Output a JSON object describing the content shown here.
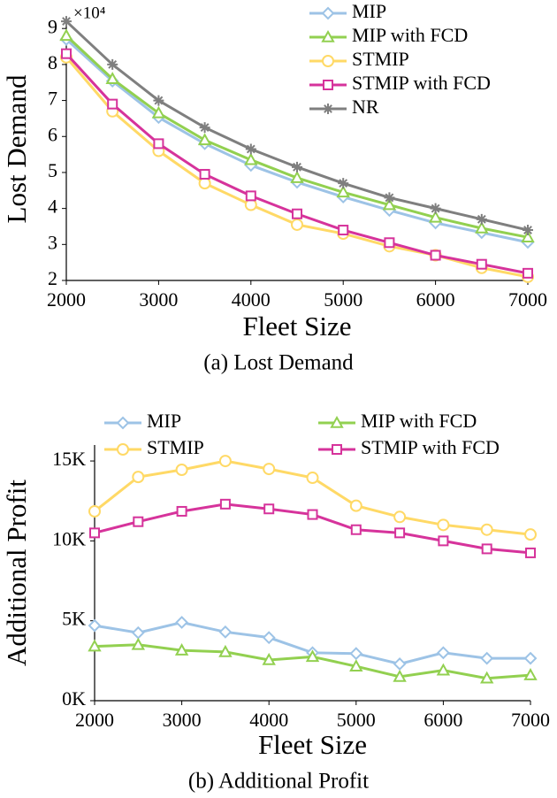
{
  "chart_data": [
    {
      "type": "line",
      "caption": "(a) Lost Demand",
      "x_label": "Fleet Size",
      "y_label": "Lost Demand",
      "y_multiplier": "×10⁴",
      "x": [
        2000,
        2500,
        3000,
        3500,
        4000,
        4500,
        5000,
        5500,
        6000,
        6500,
        7000
      ],
      "xlim": [
        2000,
        7000
      ],
      "xticks": [
        2000,
        3000,
        4000,
        5000,
        6000,
        7000
      ],
      "ylim": [
        2,
        9.3
      ],
      "yticks": [
        2,
        3,
        4,
        5,
        6,
        7,
        8,
        9
      ],
      "legend_columns": 1,
      "series": [
        {
          "name": "MIP",
          "color": "#9dc3e6",
          "marker": "diamond",
          "values": [
            8.7,
            7.54,
            6.53,
            5.8,
            5.2,
            4.73,
            4.32,
            3.95,
            3.6,
            3.33,
            3.06
          ]
        },
        {
          "name": "MIP with FCD",
          "color": "#92d050",
          "marker": "triangle",
          "values": [
            8.8,
            7.6,
            6.65,
            5.9,
            5.35,
            4.85,
            4.45,
            4.1,
            3.75,
            3.45,
            3.2
          ]
        },
        {
          "name": "STMIP",
          "color": "#ffd966",
          "marker": "circle",
          "values": [
            8.2,
            6.7,
            5.6,
            4.7,
            4.1,
            3.55,
            3.3,
            2.95,
            2.7,
            2.35,
            2.1
          ]
        },
        {
          "name": "STMIP with FCD",
          "color": "#d6339b",
          "marker": "square",
          "values": [
            8.3,
            6.9,
            5.8,
            4.95,
            4.35,
            3.85,
            3.4,
            3.05,
            2.7,
            2.45,
            2.2
          ]
        },
        {
          "name": "NR",
          "color": "#7f7f7f",
          "marker": "asterisk",
          "values": [
            9.2,
            8.0,
            7.0,
            6.25,
            5.65,
            5.15,
            4.7,
            4.3,
            4.0,
            3.7,
            3.4
          ]
        }
      ]
    },
    {
      "type": "line",
      "caption": "(b) Additional Profit",
      "x_label": "Fleet Size",
      "y_label": "Additional Profit",
      "x": [
        2000,
        2500,
        3000,
        3500,
        4000,
        4500,
        5000,
        5500,
        6000,
        6500,
        7000
      ],
      "xlim": [
        2000,
        7000
      ],
      "xticks": [
        2000,
        3000,
        4000,
        5000,
        6000,
        7000
      ],
      "ylim": [
        0,
        16000
      ],
      "yticks": [
        {
          "value": 0,
          "label": "0K"
        },
        {
          "value": 5000,
          "label": "5K"
        },
        {
          "value": 10000,
          "label": "10K"
        },
        {
          "value": 15000,
          "label": "15K"
        }
      ],
      "legend_columns": 2,
      "series": [
        {
          "name": "MIP",
          "color": "#9dc3e6",
          "marker": "diamond",
          "values": [
            4700,
            4250,
            4900,
            4300,
            3950,
            3000,
            2950,
            2300,
            3000,
            2650,
            2650
          ]
        },
        {
          "name": "MIP with FCD",
          "color": "#92d050",
          "marker": "triangle",
          "values": [
            3400,
            3500,
            3150,
            3050,
            2550,
            2750,
            2150,
            1500,
            1900,
            1400,
            1600
          ]
        },
        {
          "name": "STMIP",
          "color": "#ffd966",
          "marker": "circle",
          "values": [
            11850,
            14000,
            14450,
            15000,
            14500,
            13950,
            12200,
            11500,
            11000,
            10700,
            10400
          ]
        },
        {
          "name": "STMIP with FCD",
          "color": "#d6339b",
          "marker": "square",
          "values": [
            10500,
            11200,
            11850,
            12300,
            12000,
            11650,
            10700,
            10500,
            10000,
            9500,
            9250
          ]
        }
      ]
    }
  ]
}
